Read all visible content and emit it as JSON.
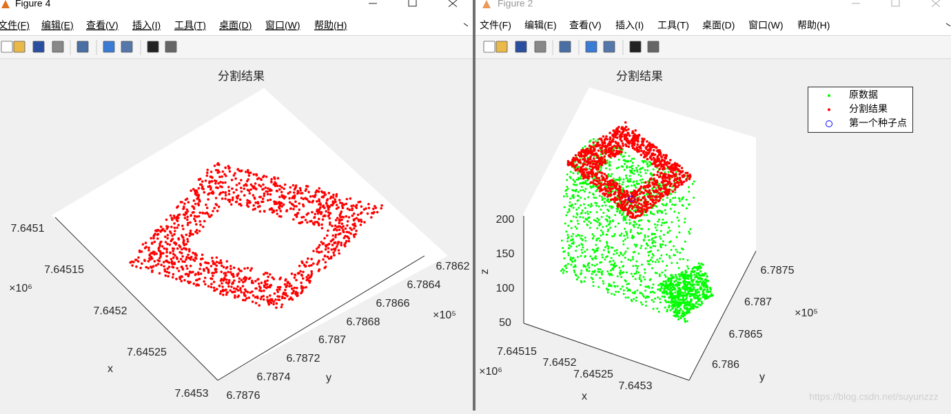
{
  "windows": [
    {
      "title": "Figure 4",
      "menu": [
        "文件(F)",
        "编辑(E)",
        "查看(V)",
        "插入(I)",
        "工具(T)",
        "桌面(D)",
        "窗口(W)",
        "帮助(H)"
      ],
      "plot": {
        "title": "分割结果",
        "x_ticks": [
          "7.6451",
          "7.64515",
          "7.6452",
          "7.64525",
          "7.6453"
        ],
        "x_exponent": "×10⁶",
        "x_label": "x",
        "y_ticks": [
          "6.7862",
          "6.7864",
          "6.7866",
          "6.7868",
          "6.787",
          "6.7872",
          "6.7874",
          "6.7876"
        ],
        "y_exponent": "×10⁵",
        "y_label": "y"
      }
    },
    {
      "title": "Figure 2",
      "menu": [
        "文件(F)",
        "编辑(E)",
        "查看(V)",
        "插入(I)",
        "工具(T)",
        "桌面(D)",
        "窗口(W)",
        "帮助(H)"
      ],
      "plot": {
        "title": "分割结果",
        "x_ticks": [
          "7.64515",
          "7.6452",
          "7.64525",
          "7.6453"
        ],
        "x_exponent": "×10⁶",
        "x_label": "x",
        "y_ticks": [
          "6.7875",
          "6.787",
          "6.7865",
          "6.786"
        ],
        "y_exponent": "×10⁵",
        "y_label": "y",
        "z_ticks": [
          "200",
          "150",
          "100",
          "50"
        ],
        "z_label": "z",
        "legend": [
          "原数据",
          "分割结果",
          "第一个种子点"
        ]
      }
    }
  ],
  "watermark": "https://blog.csdn.net/suyunzzz"
}
